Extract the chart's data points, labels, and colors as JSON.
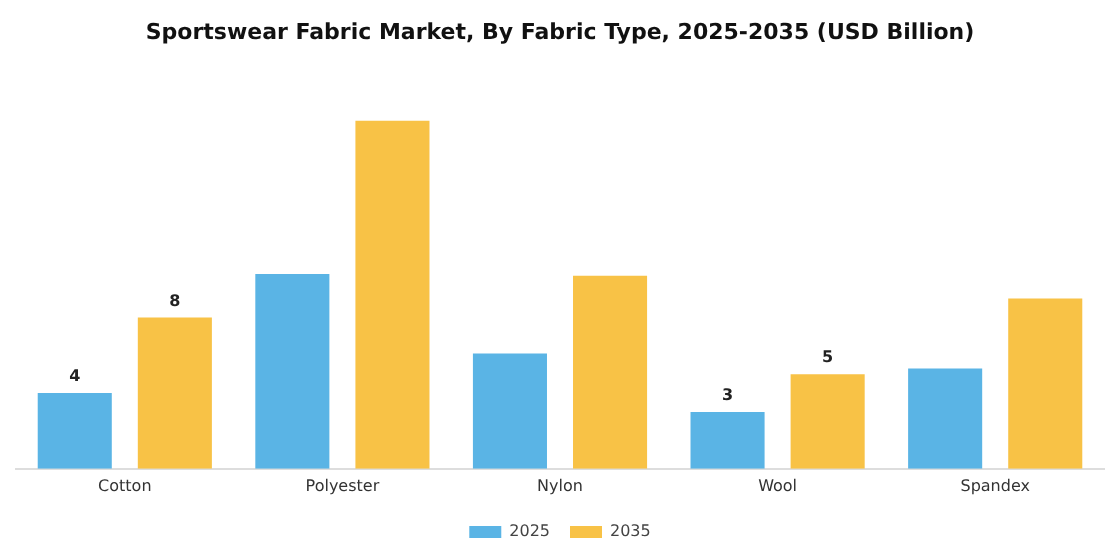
{
  "chart_data": {
    "type": "bar",
    "title": "Sportswear Fabric Market, By Fabric Type, 2025-2035 (USD Billion)",
    "categories": [
      "Cotton",
      "Polyester",
      "Nylon",
      "Wool",
      "Spandex"
    ],
    "series": [
      {
        "name": "2025",
        "color": "#5ab4e5",
        "values": [
          4,
          10.3,
          6.1,
          3,
          5.3
        ],
        "value_labels": [
          "4",
          null,
          null,
          "3",
          null
        ]
      },
      {
        "name": "2035",
        "color": "#f8c246",
        "values": [
          8,
          18.4,
          10.2,
          5,
          9
        ],
        "value_labels": [
          "8",
          null,
          null,
          "5",
          null
        ]
      }
    ],
    "legend": "bottom",
    "grid": false
  }
}
